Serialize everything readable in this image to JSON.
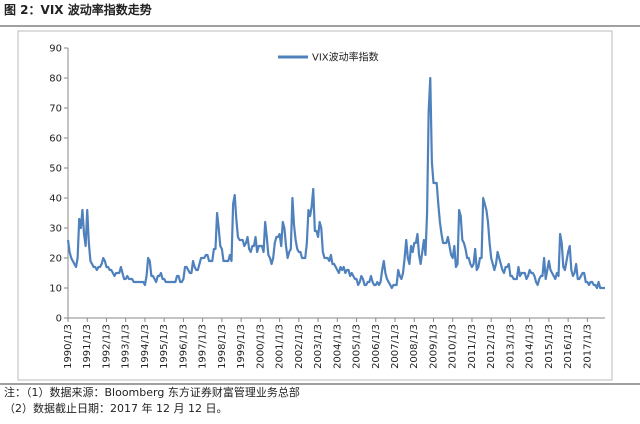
{
  "chart_data": {
    "type": "line",
    "title": "图 2：VIX 波动率指数走势",
    "categories": [
      "1990/1/3",
      null,
      null,
      null,
      null,
      null,
      null,
      null,
      null,
      null,
      null,
      null,
      "1991/1/3",
      null,
      null,
      null,
      null,
      null,
      null,
      null,
      null,
      null,
      null,
      null,
      "1992/1/3",
      null,
      null,
      null,
      null,
      null,
      null,
      null,
      null,
      null,
      null,
      null,
      "1993/1/3",
      null,
      null,
      null,
      null,
      null,
      null,
      null,
      null,
      null,
      null,
      null,
      "1994/1/3",
      null,
      null,
      null,
      null,
      null,
      null,
      null,
      null,
      null,
      null,
      null,
      "1995/1/3",
      null,
      null,
      null,
      null,
      null,
      null,
      null,
      null,
      null,
      null,
      null,
      "1996/1/3",
      null,
      null,
      null,
      null,
      null,
      null,
      null,
      null,
      null,
      null,
      null,
      "1997/1/3",
      null,
      null,
      null,
      null,
      null,
      null,
      null,
      null,
      null,
      null,
      null,
      "1998/1/3",
      null,
      null,
      null,
      null,
      null,
      null,
      null,
      null,
      null,
      null,
      null,
      "1999/1/3",
      null,
      null,
      null,
      null,
      null,
      null,
      null,
      null,
      null,
      null,
      null,
      "2000/1/3",
      null,
      null,
      null,
      null,
      null,
      null,
      null,
      null,
      null,
      null,
      null,
      "2001/1/3",
      null,
      null,
      null,
      null,
      null,
      null,
      null,
      null,
      null,
      null,
      null,
      "2002/1/3",
      null,
      null,
      null,
      null,
      null,
      null,
      null,
      null,
      null,
      null,
      null,
      "2003/1/3",
      null,
      null,
      null,
      null,
      null,
      null,
      null,
      null,
      null,
      null,
      null,
      "2004/1/3",
      null,
      null,
      null,
      null,
      null,
      null,
      null,
      null,
      null,
      null,
      null,
      "2005/1/3",
      null,
      null,
      null,
      null,
      null,
      null,
      null,
      null,
      null,
      null,
      null,
      "2006/1/3",
      null,
      null,
      null,
      null,
      null,
      null,
      null,
      null,
      null,
      null,
      null,
      "2007/1/3",
      null,
      null,
      null,
      null,
      null,
      null,
      null,
      null,
      null,
      null,
      null,
      "2008/1/3",
      null,
      null,
      null,
      null,
      null,
      null,
      null,
      null,
      null,
      null,
      null,
      "2009/1/3",
      null,
      null,
      null,
      null,
      null,
      null,
      null,
      null,
      null,
      null,
      null,
      "2010/1/3",
      null,
      null,
      null,
      null,
      null,
      null,
      null,
      null,
      null,
      null,
      null,
      "2011/1/3",
      null,
      null,
      null,
      null,
      null,
      null,
      null,
      null,
      null,
      null,
      null,
      "2012/1/3",
      null,
      null,
      null,
      null,
      null,
      null,
      null,
      null,
      null,
      null,
      null,
      "2013/1/3",
      null,
      null,
      null,
      null,
      null,
      null,
      null,
      null,
      null,
      null,
      null,
      "2014/1/3",
      null,
      null,
      null,
      null,
      null,
      null,
      null,
      null,
      null,
      null,
      null,
      "2015/1/3",
      null,
      null,
      null,
      null,
      null,
      null,
      null,
      null,
      null,
      null,
      null,
      "2016/1/3",
      null,
      null,
      null,
      null,
      null,
      null,
      null,
      null,
      null,
      null,
      null,
      "2017/1/3",
      null,
      null,
      null,
      null,
      null,
      null,
      null,
      null,
      null,
      null,
      null
    ],
    "series": [
      {
        "name": "VIX波动率指数",
        "color": "#4f81bd",
        "values": [
          26,
          22,
          20,
          19,
          18,
          17,
          20,
          33,
          30,
          36,
          28,
          24,
          36,
          25,
          19,
          18,
          17,
          17,
          16,
          17,
          17,
          18,
          20,
          19,
          17,
          17,
          16,
          16,
          15,
          14,
          15,
          15,
          15,
          17,
          15,
          13,
          13,
          14,
          13,
          13,
          13,
          12,
          12,
          12,
          12,
          12,
          12,
          12,
          11,
          14,
          20,
          19,
          14,
          14,
          13,
          12,
          14,
          14,
          15,
          13,
          13,
          12,
          12,
          12,
          12,
          12,
          12,
          12,
          14,
          14,
          12,
          12,
          13,
          17,
          17,
          16,
          15,
          15,
          19,
          17,
          16,
          16,
          18,
          20,
          20,
          20,
          21,
          21,
          19,
          19,
          19,
          23,
          23,
          35,
          30,
          24,
          23,
          19,
          19,
          19,
          19,
          21,
          19,
          38,
          41,
          33,
          27,
          26,
          26,
          26,
          24,
          25,
          27,
          23,
          22,
          24,
          24,
          27,
          22,
          24,
          24,
          24,
          22,
          32,
          27,
          21,
          20,
          18,
          20,
          25,
          27,
          27,
          28,
          24,
          32,
          30,
          24,
          20,
          22,
          23,
          40,
          31,
          26,
          23,
          22,
          22,
          20,
          20,
          20,
          25,
          36,
          34,
          37,
          43,
          29,
          29,
          27,
          32,
          30,
          22,
          20,
          20,
          20,
          19,
          21,
          18,
          18,
          17,
          16,
          15,
          17,
          16,
          17,
          15,
          16,
          16,
          14,
          15,
          14,
          13,
          13,
          11,
          12,
          14,
          13,
          11,
          11,
          12,
          12,
          14,
          12,
          11,
          11,
          12,
          11,
          12,
          16,
          19,
          15,
          13,
          12,
          11,
          10,
          11,
          11,
          11,
          16,
          14,
          13,
          15,
          20,
          26,
          20,
          18,
          24,
          22,
          25,
          25,
          28,
          21,
          18,
          22,
          26,
          21,
          35,
          69,
          80,
          52,
          45,
          45,
          45,
          38,
          32,
          28,
          25,
          25,
          25,
          27,
          24,
          21,
          20,
          24,
          17,
          18,
          36,
          34,
          26,
          25,
          23,
          20,
          20,
          18,
          17,
          18,
          23,
          16,
          17,
          20,
          20,
          40,
          38,
          36,
          32,
          25,
          20,
          18,
          16,
          18,
          22,
          20,
          18,
          16,
          15,
          17,
          17,
          18,
          14,
          14,
          13,
          13,
          13,
          17,
          14,
          15,
          15,
          15,
          13,
          14,
          16,
          15,
          15,
          14,
          12,
          11,
          13,
          14,
          14,
          20,
          13,
          16,
          19,
          16,
          15,
          14,
          13,
          15,
          14,
          28,
          25,
          17,
          16,
          19,
          22,
          24,
          16,
          14,
          15,
          18,
          13,
          13,
          14,
          15,
          15,
          12,
          12,
          11,
          12,
          12,
          11,
          11,
          10,
          12,
          10,
          10,
          10,
          10
        ]
      }
    ],
    "ylim": [
      0,
      90
    ],
    "yticks": [
      0,
      10,
      20,
      30,
      40,
      50,
      60,
      70,
      80,
      90
    ],
    "grid": false,
    "legend": "top"
  },
  "notes": [
    "注：（1）数据来源：Bloomberg 东方证券财富管理业务总部",
    "（2）数据截止日期：2017 年 12 月 12 日。"
  ]
}
